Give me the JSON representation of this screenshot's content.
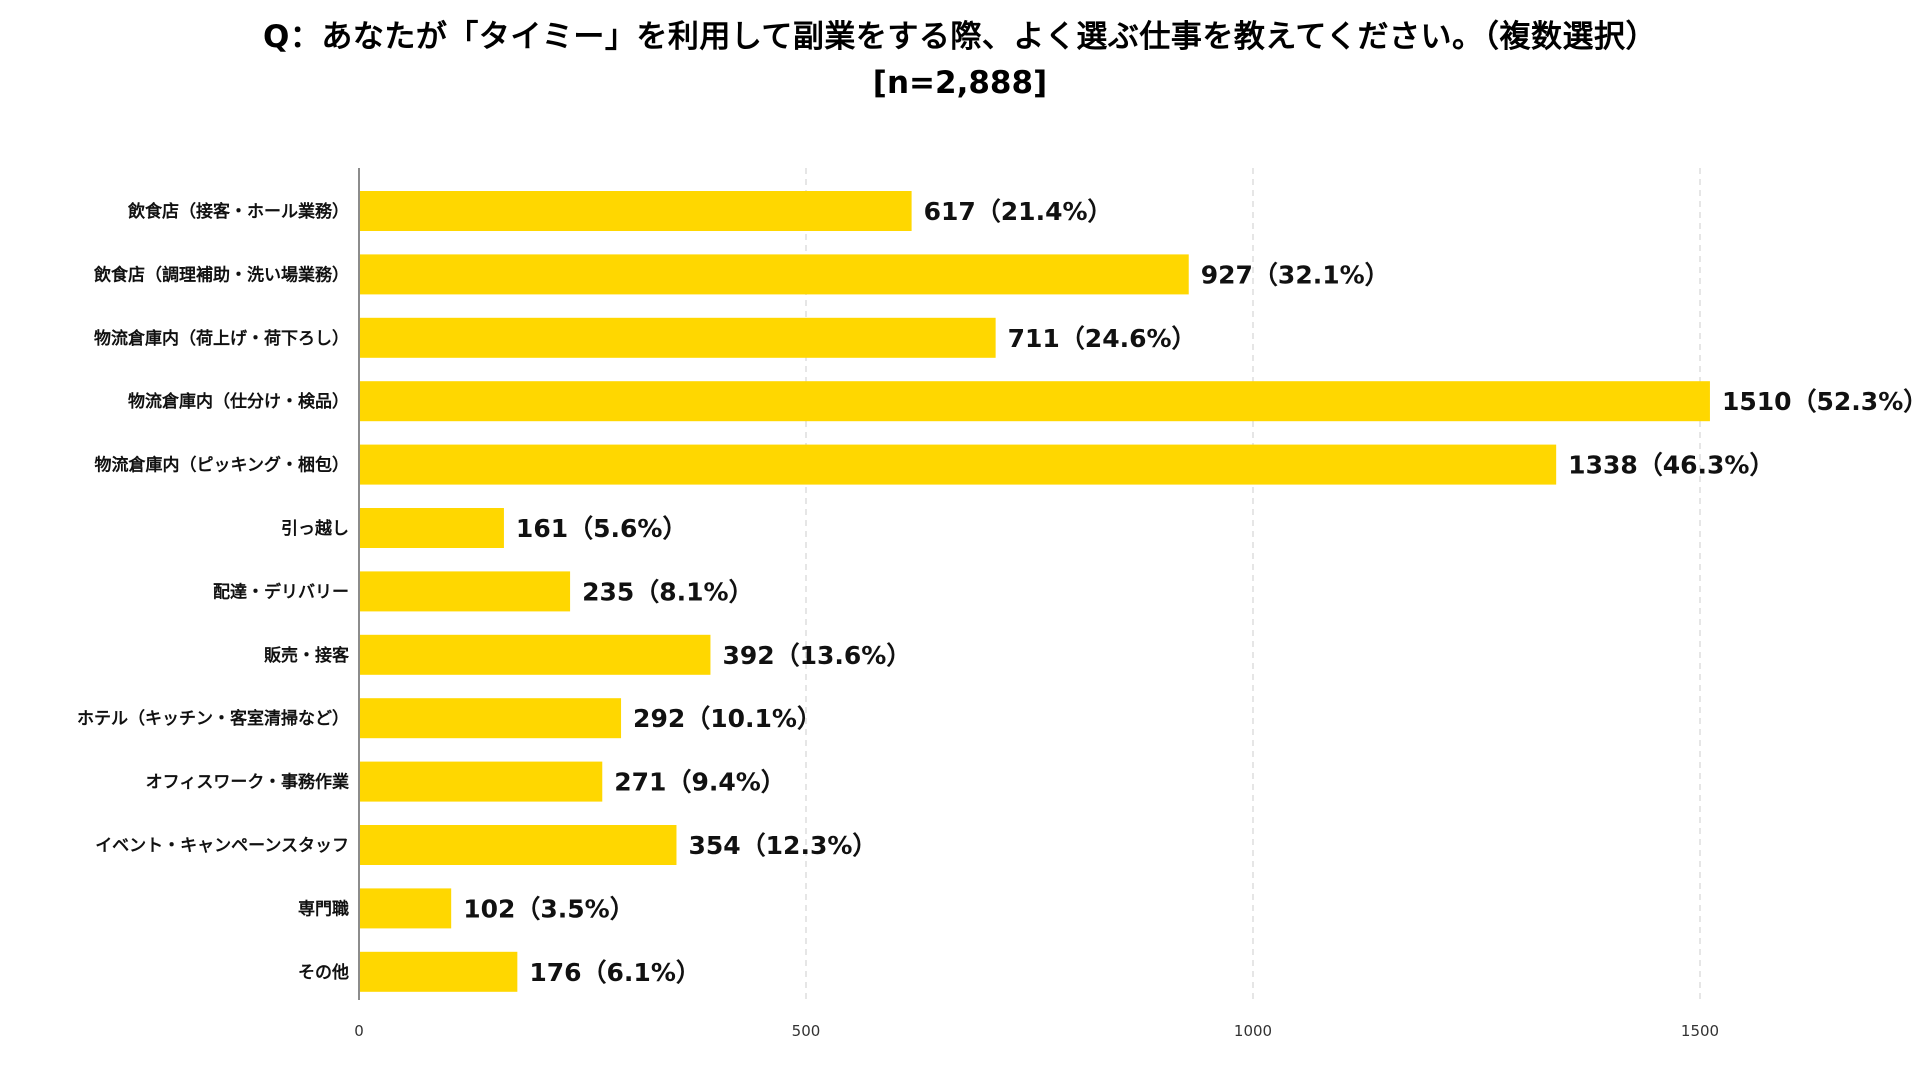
{
  "chart_data": {
    "type": "bar",
    "orientation": "horizontal",
    "title": "Q：あなたが「タイミー」を利用して副業をする際、よく選ぶ仕事を教えてください。（複数選択）",
    "subtitle": "[n=2,888]",
    "categories": [
      "飲食店（接客・ホール業務）",
      "飲食店（調理補助・洗い場業務）",
      "物流倉庫内（荷上げ・荷下ろし）",
      "物流倉庫内（仕分け・検品）",
      "物流倉庫内（ピッキング・梱包）",
      "引っ越し",
      "配達・デリバリー",
      "販売・接客",
      "ホテル（キッチン・客室清掃など）",
      "オフィスワーク・事務作業",
      "イベント・キャンペーンスタッフ",
      "専門職",
      "その他"
    ],
    "values": [
      617,
      927,
      711,
      1510,
      1338,
      161,
      235,
      392,
      292,
      271,
      354,
      102,
      176
    ],
    "value_labels": [
      "617（21.4%）",
      "927（32.1%）",
      "711（24.6%）",
      "1510（52.3%）",
      "1338（46.3%）",
      "161（5.6%）",
      "235（8.1%）",
      "392（13.6%）",
      "292（10.1%）",
      "271（9.4%）",
      "354（12.3%）",
      "102（3.5%）",
      "176（6.1%）"
    ],
    "xticks": [
      0,
      500,
      1000,
      1500
    ],
    "xtick_labels": [
      "0",
      "500",
      "1000",
      "1500"
    ],
    "xlim": [
      0,
      1700
    ],
    "grid": true,
    "legend": "none",
    "bar_color": "#FFD700",
    "grid_color": "#cccccc",
    "axis_color": "#666666"
  }
}
